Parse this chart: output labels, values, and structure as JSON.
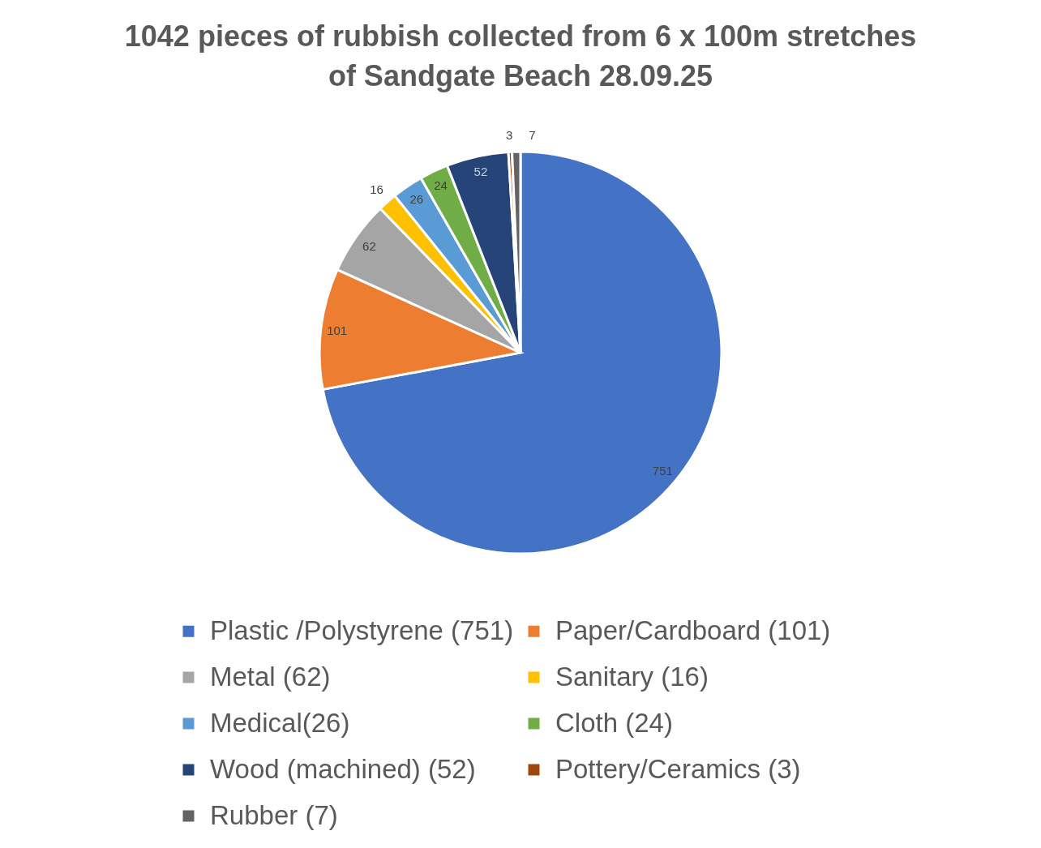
{
  "chart_data": {
    "type": "pie",
    "title": "1042 pieces of rubbish collected from 6 x 100m stretches of Sandgate Beach 28.09.25",
    "categories": [
      "Plastic /Polystyrene (751)",
      "Paper/Cardboard (101)",
      "Metal (62)",
      "Sanitary (16)",
      "Medical(26)",
      "Cloth (24)",
      "Wood (machined) (52)",
      "Pottery/Ceramics (3)",
      "Rubber (7)"
    ],
    "values": [
      751,
      101,
      62,
      16,
      26,
      24,
      52,
      3,
      7
    ],
    "colors": [
      "#4472c4",
      "#ed7d31",
      "#a5a5a5",
      "#ffc000",
      "#5b9bd5",
      "#70ad47",
      "#264478",
      "#9e480e",
      "#636363"
    ],
    "data_labels": true,
    "legend": "bottom"
  }
}
